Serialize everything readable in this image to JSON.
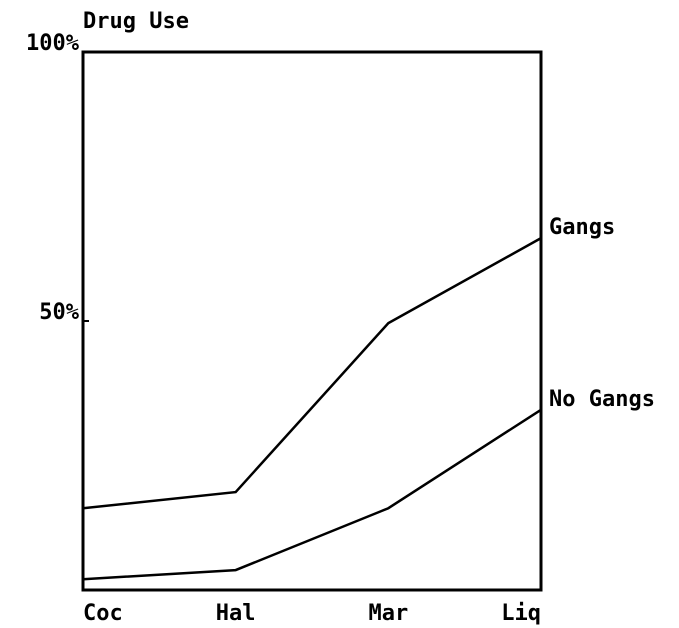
{
  "chart_data": {
    "type": "line",
    "title": "Drug Use",
    "categories": [
      "Coc",
      "Hal",
      "Mar",
      "Liq"
    ],
    "series": [
      {
        "name": "Gangs",
        "color": "#000000",
        "values": [
          15.2,
          18.2,
          49.6,
          65.4
        ]
      },
      {
        "name": "No Gangs",
        "color": "#000000",
        "values": [
          2,
          3.7,
          15.2,
          33.5
        ]
      }
    ],
    "ylim": [
      0,
      100
    ],
    "yticks": [
      {
        "value": 50,
        "label": "50%"
      },
      {
        "value": 100,
        "label": "100%"
      }
    ]
  }
}
